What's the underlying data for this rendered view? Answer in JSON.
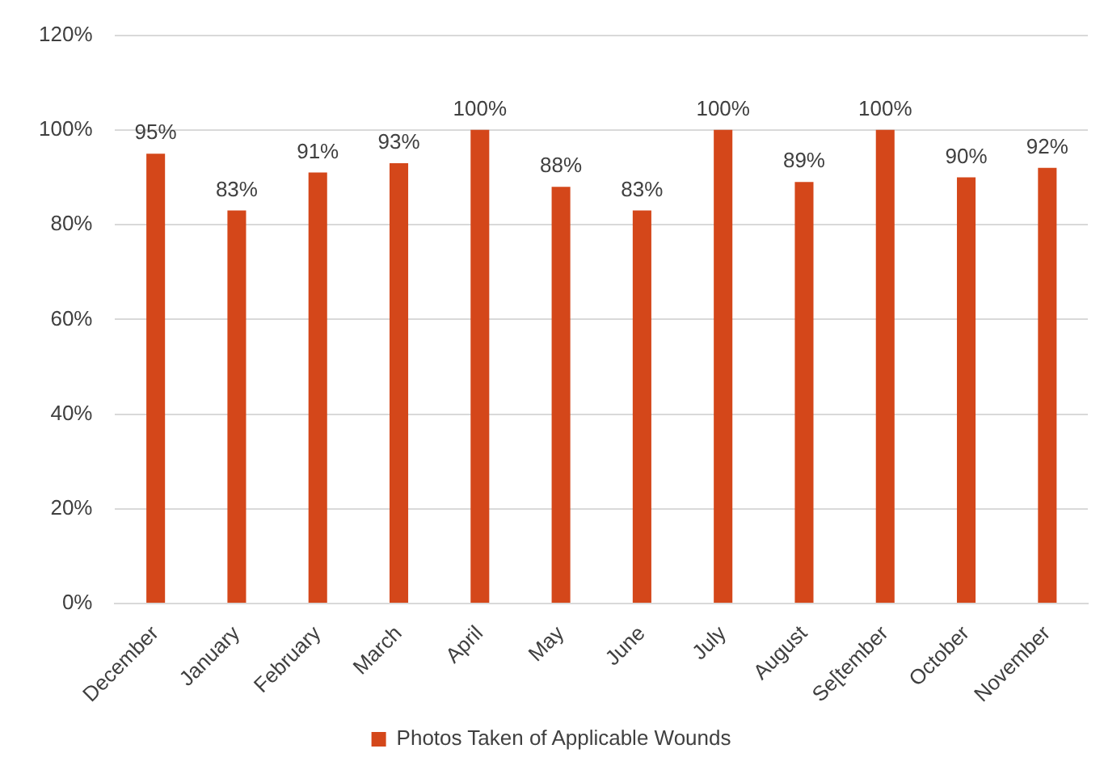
{
  "chart_data": {
    "type": "bar",
    "categories": [
      "December",
      "January",
      "February",
      "March",
      "April",
      "May",
      "June",
      "July",
      "August",
      "Se[tember",
      "October",
      "November"
    ],
    "series": [
      {
        "name": "Photos Taken of Applicable Wounds",
        "color": "#d4471a",
        "values": [
          95,
          83,
          91,
          93,
          100,
          88,
          83,
          100,
          89,
          100,
          90,
          92
        ],
        "value_labels": [
          "95%",
          "83%",
          "91%",
          "93%",
          "100%",
          "88%",
          "83%",
          "100%",
          "89%",
          "100%",
          "90%",
          "92%"
        ]
      }
    ],
    "ylim": [
      0,
      120
    ],
    "yticks": [
      {
        "value": 0,
        "label": "0%"
      },
      {
        "value": 20,
        "label": "20%"
      },
      {
        "value": 40,
        "label": "40%"
      },
      {
        "value": 60,
        "label": "60%"
      },
      {
        "value": 80,
        "label": "80%"
      },
      {
        "value": 100,
        "label": "100%"
      },
      {
        "value": 120,
        "label": "120%"
      }
    ],
    "grid": "y",
    "legend": "bottom"
  }
}
